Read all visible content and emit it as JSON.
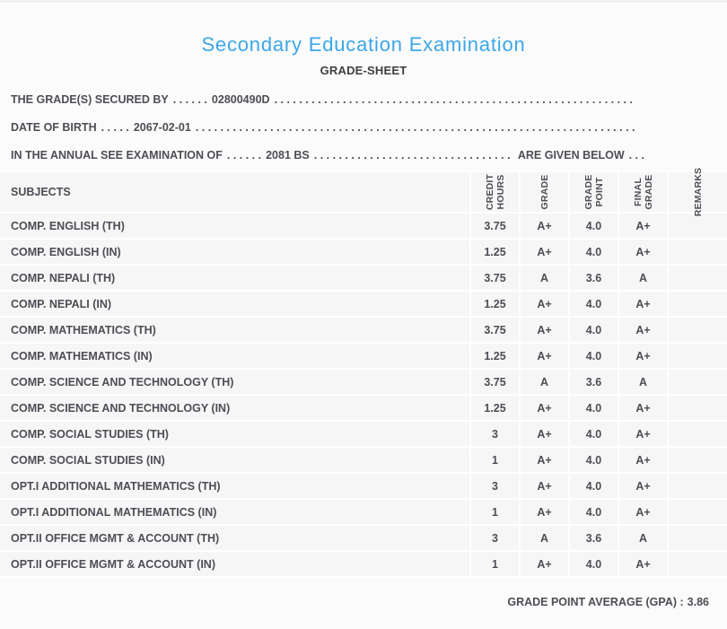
{
  "page": {
    "title": "Secondary Education Examination",
    "subtitle": "GRADE-SHEET"
  },
  "info_lines": [
    {
      "label": "THE GRADE(S) SECURED BY",
      "sep_dots": ". . . . . .",
      "value": "02800490D",
      "fill_dots": ". . . . . . . . . . . . . . . . . . . . . . . . . . . . . . . . . . . . . . . . . . . . . . . . . . . . . . . . . . . . . . . . . . . . . . . . . . . . . . . . . . . .",
      "suffix": "",
      "tail_dots": ""
    },
    {
      "label": "DATE OF BIRTH",
      "sep_dots": ". . . . .",
      "value": "2067-02-01",
      "fill_dots": ". . . . . . . . . . . . . . . . . . . . . . . . . . . . . . . . . . . . . . . . . . . . . . . . . . . . . . . . . . . . . . . . . . . . . . . . . . . . . . . . . . . .",
      "suffix": "",
      "tail_dots": ""
    },
    {
      "label": "IN THE ANNUAL SEE EXAMINATION OF",
      "sep_dots": ". . . . . .",
      "value": "2081 BS",
      "fill_dots": ". . . . . . . . . . . . . . . . . . . . . . . . . . . . . . . . . . . . . . . . . . . . . . . . . . . . . . . . . . . . . . . . . . . . . . . . . . . . . . . . . . . .",
      "suffix": "ARE GIVEN BELOW",
      "tail_dots": ". . ."
    }
  ],
  "table": {
    "subjects_header": "SUBJECTS",
    "columns": [
      "CREDIT\nHOURS",
      "GRADE",
      "GRADE\nPOINT",
      "FINAL\nGRADE",
      "REMARKS"
    ],
    "rows": [
      {
        "subject": "COMP. ENGLISH (TH)",
        "credit_hours": "3.75",
        "grade": "A+",
        "grade_point": "4.0",
        "final_grade": "A+",
        "remarks": ""
      },
      {
        "subject": "COMP. ENGLISH (IN)",
        "credit_hours": "1.25",
        "grade": "A+",
        "grade_point": "4.0",
        "final_grade": "A+",
        "remarks": ""
      },
      {
        "subject": "COMP. NEPALI (TH)",
        "credit_hours": "3.75",
        "grade": "A",
        "grade_point": "3.6",
        "final_grade": "A",
        "remarks": ""
      },
      {
        "subject": "COMP. NEPALI (IN)",
        "credit_hours": "1.25",
        "grade": "A+",
        "grade_point": "4.0",
        "final_grade": "A+",
        "remarks": ""
      },
      {
        "subject": "COMP. MATHEMATICS (TH)",
        "credit_hours": "3.75",
        "grade": "A+",
        "grade_point": "4.0",
        "final_grade": "A+",
        "remarks": ""
      },
      {
        "subject": "COMP. MATHEMATICS (IN)",
        "credit_hours": "1.25",
        "grade": "A+",
        "grade_point": "4.0",
        "final_grade": "A+",
        "remarks": ""
      },
      {
        "subject": "COMP. SCIENCE AND TECHNOLOGY (TH)",
        "credit_hours": "3.75",
        "grade": "A",
        "grade_point": "3.6",
        "final_grade": "A",
        "remarks": ""
      },
      {
        "subject": "COMP. SCIENCE AND TECHNOLOGY (IN)",
        "credit_hours": "1.25",
        "grade": "A+",
        "grade_point": "4.0",
        "final_grade": "A+",
        "remarks": ""
      },
      {
        "subject": "COMP. SOCIAL STUDIES (TH)",
        "credit_hours": "3",
        "grade": "A+",
        "grade_point": "4.0",
        "final_grade": "A+",
        "remarks": ""
      },
      {
        "subject": "COMP. SOCIAL STUDIES (IN)",
        "credit_hours": "1",
        "grade": "A+",
        "grade_point": "4.0",
        "final_grade": "A+",
        "remarks": ""
      },
      {
        "subject": "OPT.I ADDITIONAL MATHEMATICS (TH)",
        "credit_hours": "3",
        "grade": "A+",
        "grade_point": "4.0",
        "final_grade": "A+",
        "remarks": ""
      },
      {
        "subject": "OPT.I ADDITIONAL MATHEMATICS (IN)",
        "credit_hours": "1",
        "grade": "A+",
        "grade_point": "4.0",
        "final_grade": "A+",
        "remarks": ""
      },
      {
        "subject": "OPT.II OFFICE MGMT & ACCOUNT (TH)",
        "credit_hours": "3",
        "grade": "A",
        "grade_point": "3.6",
        "final_grade": "A",
        "remarks": ""
      },
      {
        "subject": "OPT.II OFFICE MGMT & ACCOUNT (IN)",
        "credit_hours": "1",
        "grade": "A+",
        "grade_point": "4.0",
        "final_grade": "A+",
        "remarks": ""
      }
    ]
  },
  "footer": {
    "gpa_label": "GRADE POINT AVERAGE (GPA) :",
    "gpa_value": "3.86"
  },
  "colors": {
    "accent_blue": "#3ca7e8",
    "text": "#4c4e54",
    "row_bg": "#f6f6f7",
    "page_bg": "#fbfbfb",
    "separator": "#ffffff"
  }
}
